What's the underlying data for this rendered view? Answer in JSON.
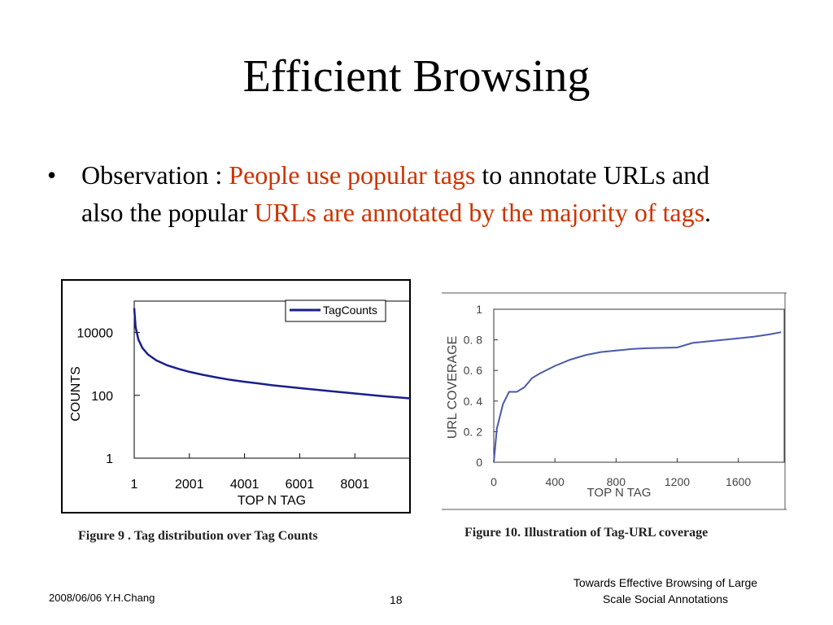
{
  "slide": {
    "title": "Efficient Browsing",
    "bullet": {
      "marker": "•",
      "prefix": "Observation : ",
      "highlight1": "People use popular tags",
      "middle": " to annotate URLs and also the popular ",
      "highlight2": "URLs are annotated by the majority of tags",
      "suffix": "."
    },
    "colors": {
      "highlight": "#cc3300",
      "series": "#1a1f8c",
      "coverage_line": "#4a5aa8"
    },
    "footer": {
      "left": "2008/06/06 Y.H.Chang",
      "page": "18",
      "right_line1": "Towards Effective Browsing of Large",
      "right_line2": "Scale Social Annotations"
    }
  },
  "figure9": {
    "caption": "Figure 9 . Tag distribution over Tag Counts",
    "ylabel": "COUNTS",
    "xlabel": "TOP  N  TAG",
    "legend": "TagCounts",
    "yticks": [
      "10000",
      "100",
      "1"
    ],
    "xticks": [
      "1",
      "2001",
      "4001",
      "6001",
      "8001"
    ]
  },
  "figure10": {
    "caption": "Figure 10. Illustration of Tag-URL coverage",
    "ylabel": "URL  COVERAGE",
    "xlabel": "TOP N TAG",
    "yticks": [
      "1",
      "0. 8",
      "0. 6",
      "0. 4",
      "0. 2",
      "0"
    ],
    "xticks": [
      "0",
      "400",
      "800",
      "1200",
      "1600"
    ]
  },
  "chart_data": [
    {
      "type": "line",
      "title": "Figure 9 . Tag distribution over Tag Counts",
      "xlabel": "TOP  N  TAG",
      "ylabel": "COUNTS",
      "y_scale": "log",
      "xlim": [
        1,
        10000
      ],
      "ylim": [
        1,
        100000
      ],
      "legend": "top-right",
      "series": [
        {
          "name": "TagCounts",
          "x": [
            1,
            50,
            150,
            300,
            500,
            800,
            1200,
            1600,
            2000,
            2500,
            3000,
            3500,
            4000,
            4500,
            5000,
            6000,
            7000,
            8000,
            9000,
            10000
          ],
          "y": [
            60000,
            15000,
            6000,
            3200,
            2000,
            1300,
            900,
            700,
            560,
            450,
            370,
            310,
            270,
            240,
            210,
            170,
            140,
            115,
            95,
            80
          ]
        }
      ]
    },
    {
      "type": "line",
      "title": "Figure 10. Illustration of Tag-URL coverage",
      "xlabel": "TOP N TAG",
      "ylabel": "URL  COVERAGE",
      "xlim": [
        0,
        1900
      ],
      "ylim": [
        0,
        1
      ],
      "series": [
        {
          "name": "",
          "x": [
            0,
            20,
            60,
            100,
            150,
            200,
            250,
            300,
            400,
            500,
            600,
            700,
            800,
            900,
            1000,
            1200,
            1300,
            1400,
            1500,
            1600,
            1700,
            1800,
            1880
          ],
          "y": [
            0,
            0.22,
            0.38,
            0.46,
            0.46,
            0.49,
            0.55,
            0.58,
            0.63,
            0.67,
            0.7,
            0.72,
            0.73,
            0.74,
            0.745,
            0.75,
            0.78,
            0.79,
            0.8,
            0.81,
            0.82,
            0.835,
            0.85
          ]
        }
      ]
    }
  ]
}
